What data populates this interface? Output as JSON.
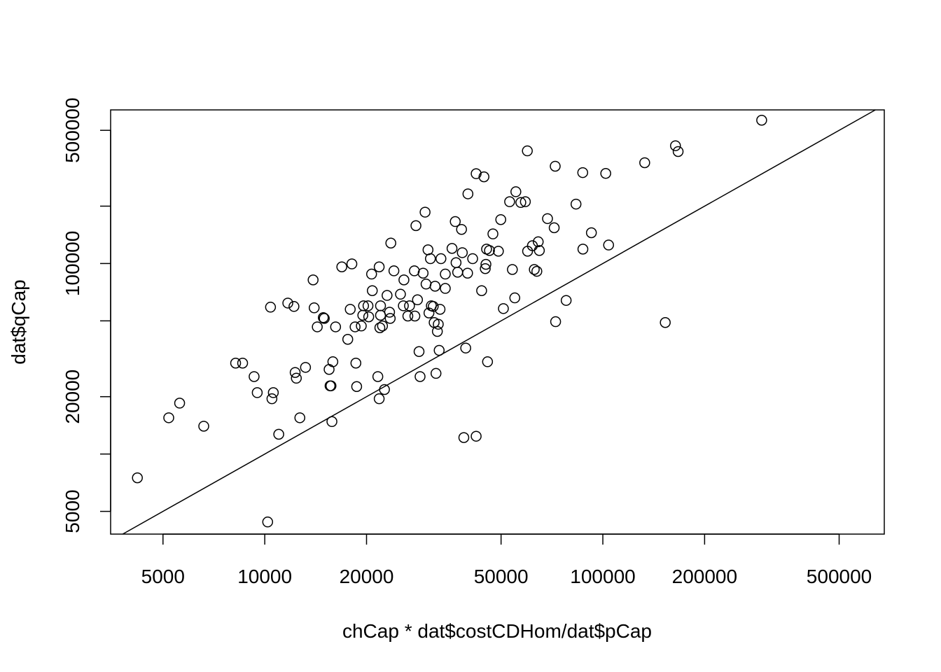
{
  "chart_data": {
    "type": "scatter",
    "title": "",
    "xlabel": "chCap * dat$costCDHom/dat$pCap",
    "ylabel": "dat$qCap",
    "xscale": "log",
    "yscale": "log",
    "xlim": [
      3500,
      680000
    ],
    "ylim": [
      3800,
      640000
    ],
    "x_ticks": [
      5000,
      10000,
      20000,
      50000,
      100000,
      200000,
      500000
    ],
    "x_tick_labels": [
      "5000",
      "10000",
      "20000",
      "50000",
      "100000",
      "200000",
      "500000"
    ],
    "y_ticks": [
      5000,
      10000,
      20000,
      50000,
      100000,
      200000,
      500000
    ],
    "y_tick_labels": [
      "5000",
      "",
      "20000",
      "",
      "100000",
      "",
      "500000"
    ],
    "reference_line": "y = x",
    "grid": false,
    "legend": "none",
    "points": [
      [
        4200,
        7500
      ],
      [
        5200,
        15500
      ],
      [
        5600,
        18500
      ],
      [
        6600,
        14000
      ],
      [
        10200,
        4400
      ],
      [
        8200,
        30000
      ],
      [
        8600,
        30000
      ],
      [
        9300,
        25500
      ],
      [
        9500,
        21000
      ],
      [
        10400,
        59000
      ],
      [
        10500,
        19500
      ],
      [
        10600,
        21000
      ],
      [
        11000,
        12700
      ],
      [
        11700,
        62000
      ],
      [
        12200,
        59500
      ],
      [
        12300,
        26800
      ],
      [
        12400,
        25000
      ],
      [
        12700,
        15500
      ],
      [
        13200,
        28500
      ],
      [
        13900,
        82000
      ],
      [
        14000,
        58500
      ],
      [
        14300,
        46500
      ],
      [
        14900,
        52000
      ],
      [
        15000,
        51500
      ],
      [
        15500,
        27800
      ],
      [
        15600,
        22800
      ],
      [
        15700,
        22800
      ],
      [
        15800,
        14800
      ],
      [
        15900,
        30500
      ],
      [
        16200,
        46500
      ],
      [
        16900,
        96000
      ],
      [
        17600,
        40000
      ],
      [
        17900,
        57500
      ],
      [
        18100,
        99500
      ],
      [
        18500,
        46500
      ],
      [
        18600,
        30000
      ],
      [
        18700,
        22600
      ],
      [
        19300,
        47000
      ],
      [
        19500,
        53500
      ],
      [
        19600,
        60000
      ],
      [
        20200,
        60000
      ],
      [
        20300,
        52500
      ],
      [
        20700,
        88000
      ],
      [
        20800,
        72000
      ],
      [
        21600,
        25500
      ],
      [
        21800,
        19500
      ],
      [
        21800,
        96000
      ],
      [
        21900,
        46000
      ],
      [
        22000,
        53500
      ],
      [
        22000,
        60000
      ],
      [
        22300,
        47000
      ],
      [
        22600,
        21800
      ],
      [
        23000,
        68000
      ],
      [
        23400,
        55500
      ],
      [
        23500,
        51500
      ],
      [
        23600,
        128000
      ],
      [
        24100,
        91500
      ],
      [
        25200,
        69000
      ],
      [
        25700,
        60000
      ],
      [
        25800,
        82000
      ],
      [
        26500,
        53000
      ],
      [
        26800,
        60000
      ],
      [
        27700,
        91500
      ],
      [
        27800,
        53000
      ],
      [
        28000,
        158000
      ],
      [
        28300,
        64500
      ],
      [
        28600,
        34500
      ],
      [
        28800,
        25500
      ],
      [
        29400,
        89000
      ],
      [
        29800,
        186000
      ],
      [
        30000,
        78000
      ],
      [
        30400,
        118000
      ],
      [
        30600,
        55000
      ],
      [
        30900,
        106000
      ],
      [
        31100,
        60000
      ],
      [
        31500,
        59500
      ],
      [
        31700,
        49000
      ],
      [
        31900,
        76000
      ],
      [
        32100,
        26500
      ],
      [
        32400,
        44000
      ],
      [
        32600,
        48000
      ],
      [
        32800,
        35000
      ],
      [
        33000,
        57500
      ],
      [
        33200,
        106000
      ],
      [
        34200,
        88000
      ],
      [
        34200,
        74000
      ],
      [
        35800,
        120000
      ],
      [
        36600,
        166000
      ],
      [
        36800,
        101000
      ],
      [
        37200,
        90000
      ],
      [
        38200,
        151000
      ],
      [
        38400,
        114000
      ],
      [
        38800,
        12200
      ],
      [
        39300,
        36000
      ],
      [
        39800,
        89000
      ],
      [
        39900,
        232000
      ],
      [
        41200,
        106000
      ],
      [
        42200,
        296000
      ],
      [
        42200,
        12400
      ],
      [
        43800,
        72000
      ],
      [
        44500,
        285000
      ],
      [
        44900,
        94000
      ],
      [
        45100,
        99000
      ],
      [
        45300,
        119000
      ],
      [
        45600,
        30500
      ],
      [
        46200,
        117000
      ],
      [
        47300,
        143000
      ],
      [
        49100,
        116000
      ],
      [
        49900,
        170000
      ],
      [
        50800,
        58000
      ],
      [
        53000,
        211000
      ],
      [
        54000,
        93000
      ],
      [
        54900,
        66000
      ],
      [
        55300,
        238000
      ],
      [
        57200,
        209000
      ],
      [
        59000,
        211000
      ],
      [
        59800,
        390000
      ],
      [
        59900,
        116000
      ],
      [
        61900,
        124000
      ],
      [
        62700,
        93000
      ],
      [
        63800,
        91000
      ],
      [
        64400,
        130000
      ],
      [
        64900,
        117000
      ],
      [
        68600,
        172000
      ],
      [
        71800,
        154000
      ],
      [
        72300,
        324000
      ],
      [
        72500,
        49500
      ],
      [
        77900,
        64000
      ],
      [
        83300,
        205000
      ],
      [
        87200,
        300000
      ],
      [
        87300,
        119000
      ],
      [
        92500,
        145000
      ],
      [
        102000,
        297000
      ],
      [
        104000,
        125000
      ],
      [
        133000,
        338000
      ],
      [
        153000,
        49000
      ],
      [
        164000,
        415000
      ],
      [
        167000,
        387000
      ],
      [
        295000,
        565000
      ]
    ]
  }
}
